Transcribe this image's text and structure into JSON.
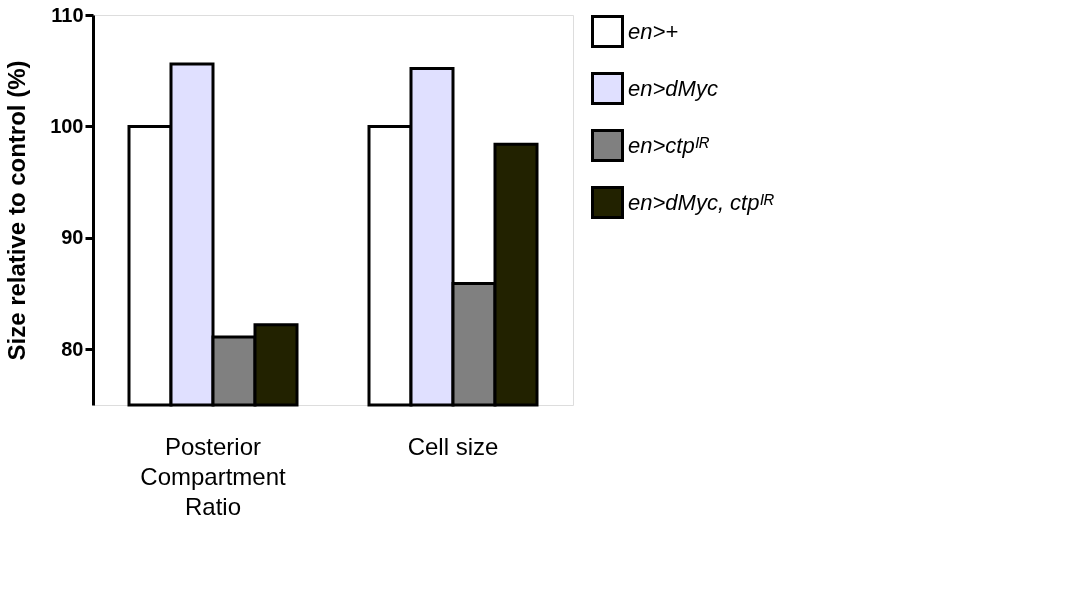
{
  "chart_data": {
    "type": "bar",
    "ylabel": "Size relative to control  (%)",
    "categories": [
      "Posterior\nCompartment\nRatio",
      "Cell size"
    ],
    "series": [
      {
        "name": "en>+",
        "color": "#ffffff",
        "values": [
          100,
          100
        ]
      },
      {
        "name": "en>dMyc",
        "color": "#e0e0ff",
        "values": [
          105.6,
          105.2
        ]
      },
      {
        "name": "en>ctpᴵᴿ",
        "color": "#808080",
        "values": [
          81.1,
          85.9
        ]
      },
      {
        "name": "en>dMyc, ctpᴵᴿ",
        "color": "#222200",
        "values": [
          82.2,
          98.4
        ]
      }
    ],
    "ylim": [
      75,
      110
    ],
    "yticks": [
      80,
      90,
      100,
      110
    ],
    "grid": false,
    "legend": "right"
  }
}
